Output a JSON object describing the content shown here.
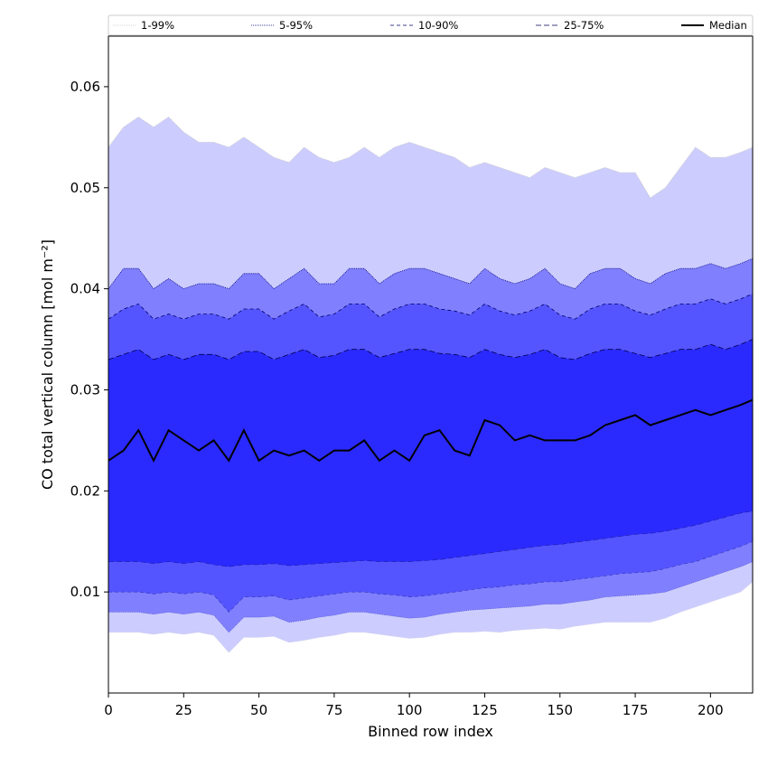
{
  "chart_data": {
    "type": "area",
    "xlabel": "Binned row index",
    "ylabel": "CO total vertical column [mol m⁻²]",
    "xlim": [
      0,
      214
    ],
    "ylim": [
      0.0,
      0.065
    ],
    "x_ticks": [
      0,
      25,
      50,
      75,
      100,
      125,
      150,
      175,
      200
    ],
    "y_ticks": [
      0.01,
      0.02,
      0.03,
      0.04,
      0.05,
      0.06
    ],
    "x_tick_labels": [
      "0",
      "25",
      "50",
      "75",
      "100",
      "125",
      "150",
      "175",
      "200"
    ],
    "y_tick_labels": [
      "0.01",
      "0.02",
      "0.03",
      "0.04",
      "0.05",
      "0.06"
    ],
    "grid": false,
    "legend_position": "top",
    "x": [
      0,
      5,
      10,
      15,
      20,
      25,
      30,
      35,
      40,
      45,
      50,
      55,
      60,
      65,
      70,
      75,
      80,
      85,
      90,
      95,
      100,
      105,
      110,
      115,
      120,
      125,
      130,
      135,
      140,
      145,
      150,
      155,
      160,
      165,
      170,
      175,
      180,
      185,
      190,
      195,
      200,
      205,
      210,
      214
    ],
    "bands": [
      {
        "name": "1-99%",
        "color": "#ccccff",
        "line_color": "#c8c8c8",
        "dash": "1,1",
        "lower": [
          0.006,
          0.006,
          0.006,
          0.0058,
          0.006,
          0.0058,
          0.006,
          0.0057,
          0.004,
          0.0055,
          0.0055,
          0.0056,
          0.005,
          0.0052,
          0.0055,
          0.0057,
          0.006,
          0.006,
          0.0058,
          0.0056,
          0.0054,
          0.0055,
          0.0058,
          0.006,
          0.006,
          0.0061,
          0.006,
          0.0062,
          0.0063,
          0.0064,
          0.0063,
          0.0066,
          0.0068,
          0.007,
          0.007,
          0.007,
          0.007,
          0.0074,
          0.008,
          0.0085,
          0.009,
          0.0095,
          0.01,
          0.011
        ],
        "upper": [
          0.054,
          0.056,
          0.057,
          0.056,
          0.057,
          0.0555,
          0.0545,
          0.0545,
          0.054,
          0.055,
          0.054,
          0.053,
          0.0525,
          0.054,
          0.053,
          0.0525,
          0.053,
          0.054,
          0.053,
          0.054,
          0.0545,
          0.054,
          0.0535,
          0.053,
          0.052,
          0.0525,
          0.052,
          0.0515,
          0.051,
          0.052,
          0.0515,
          0.051,
          0.0515,
          0.052,
          0.0515,
          0.0515,
          0.049,
          0.05,
          0.052,
          0.054,
          0.053,
          0.053,
          0.0535,
          0.054
        ]
      },
      {
        "name": "5-95%",
        "color": "#8080ff",
        "line_color": "#000080",
        "dash": "1,1",
        "lower": [
          0.008,
          0.008,
          0.008,
          0.0078,
          0.008,
          0.0078,
          0.008,
          0.0077,
          0.006,
          0.0075,
          0.0075,
          0.0076,
          0.007,
          0.0072,
          0.0075,
          0.0077,
          0.008,
          0.008,
          0.0078,
          0.0076,
          0.0074,
          0.0075,
          0.0078,
          0.008,
          0.0082,
          0.0083,
          0.0084,
          0.0085,
          0.0086,
          0.0088,
          0.0088,
          0.009,
          0.0092,
          0.0095,
          0.0096,
          0.0097,
          0.0098,
          0.01,
          0.0105,
          0.011,
          0.0115,
          0.012,
          0.0125,
          0.013
        ],
        "upper": [
          0.04,
          0.042,
          0.042,
          0.04,
          0.041,
          0.04,
          0.0405,
          0.0405,
          0.04,
          0.0415,
          0.0415,
          0.04,
          0.041,
          0.042,
          0.0405,
          0.0405,
          0.042,
          0.042,
          0.0405,
          0.0415,
          0.042,
          0.042,
          0.0415,
          0.041,
          0.0405,
          0.042,
          0.041,
          0.0405,
          0.041,
          0.042,
          0.0405,
          0.04,
          0.0415,
          0.042,
          0.042,
          0.041,
          0.0405,
          0.0415,
          0.042,
          0.042,
          0.0425,
          0.042,
          0.0425,
          0.043
        ]
      },
      {
        "name": "10-90%",
        "color": "#5555ff",
        "line_color": "#000066",
        "dash": "4,3",
        "lower": [
          0.01,
          0.01,
          0.01,
          0.0098,
          0.01,
          0.0098,
          0.01,
          0.0097,
          0.008,
          0.0095,
          0.0095,
          0.0096,
          0.0092,
          0.0094,
          0.0096,
          0.0098,
          0.01,
          0.01,
          0.0098,
          0.0097,
          0.0095,
          0.0096,
          0.0098,
          0.01,
          0.0102,
          0.0104,
          0.0105,
          0.0107,
          0.0108,
          0.011,
          0.011,
          0.0112,
          0.0114,
          0.0116,
          0.0118,
          0.0119,
          0.012,
          0.0123,
          0.0127,
          0.013,
          0.0135,
          0.014,
          0.0145,
          0.015
        ],
        "upper": [
          0.037,
          0.038,
          0.0385,
          0.037,
          0.0375,
          0.037,
          0.0375,
          0.0375,
          0.037,
          0.038,
          0.038,
          0.037,
          0.0378,
          0.0385,
          0.0372,
          0.0375,
          0.0385,
          0.0385,
          0.0372,
          0.038,
          0.0385,
          0.0385,
          0.038,
          0.0378,
          0.0374,
          0.0385,
          0.0378,
          0.0374,
          0.0378,
          0.0385,
          0.0374,
          0.037,
          0.038,
          0.0385,
          0.0385,
          0.0378,
          0.0374,
          0.038,
          0.0385,
          0.0385,
          0.039,
          0.0385,
          0.039,
          0.0395
        ]
      },
      {
        "name": "25-75%",
        "color": "#2a2aff",
        "line_color": "#00004d",
        "dash": "6,3",
        "lower": [
          0.013,
          0.013,
          0.013,
          0.0128,
          0.013,
          0.0128,
          0.013,
          0.0127,
          0.0125,
          0.0127,
          0.0127,
          0.0128,
          0.0126,
          0.0127,
          0.0128,
          0.0129,
          0.013,
          0.0131,
          0.013,
          0.013,
          0.013,
          0.0131,
          0.0132,
          0.0134,
          0.0136,
          0.0138,
          0.014,
          0.0142,
          0.0144,
          0.0146,
          0.0147,
          0.0149,
          0.0151,
          0.0153,
          0.0155,
          0.0157,
          0.0158,
          0.016,
          0.0163,
          0.0166,
          0.017,
          0.0174,
          0.0178,
          0.018
        ],
        "upper": [
          0.033,
          0.0335,
          0.034,
          0.033,
          0.0335,
          0.033,
          0.0335,
          0.0335,
          0.033,
          0.0338,
          0.0338,
          0.033,
          0.0335,
          0.034,
          0.0332,
          0.0334,
          0.034,
          0.034,
          0.0332,
          0.0336,
          0.034,
          0.034,
          0.0336,
          0.0335,
          0.0332,
          0.034,
          0.0335,
          0.0332,
          0.0335,
          0.034,
          0.0332,
          0.033,
          0.0336,
          0.034,
          0.034,
          0.0336,
          0.0332,
          0.0336,
          0.034,
          0.034,
          0.0345,
          0.034,
          0.0345,
          0.035
        ]
      }
    ],
    "median": {
      "name": "Median",
      "color": "#000000",
      "values": [
        0.023,
        0.024,
        0.026,
        0.023,
        0.026,
        0.025,
        0.024,
        0.025,
        0.023,
        0.026,
        0.023,
        0.024,
        0.0235,
        0.024,
        0.023,
        0.024,
        0.024,
        0.025,
        0.023,
        0.024,
        0.023,
        0.0255,
        0.026,
        0.024,
        0.0235,
        0.027,
        0.0265,
        0.025,
        0.0255,
        0.025,
        0.025,
        0.025,
        0.0255,
        0.0265,
        0.027,
        0.0275,
        0.0265,
        0.027,
        0.0275,
        0.028,
        0.0275,
        0.028,
        0.0285,
        0.029
      ]
    }
  }
}
